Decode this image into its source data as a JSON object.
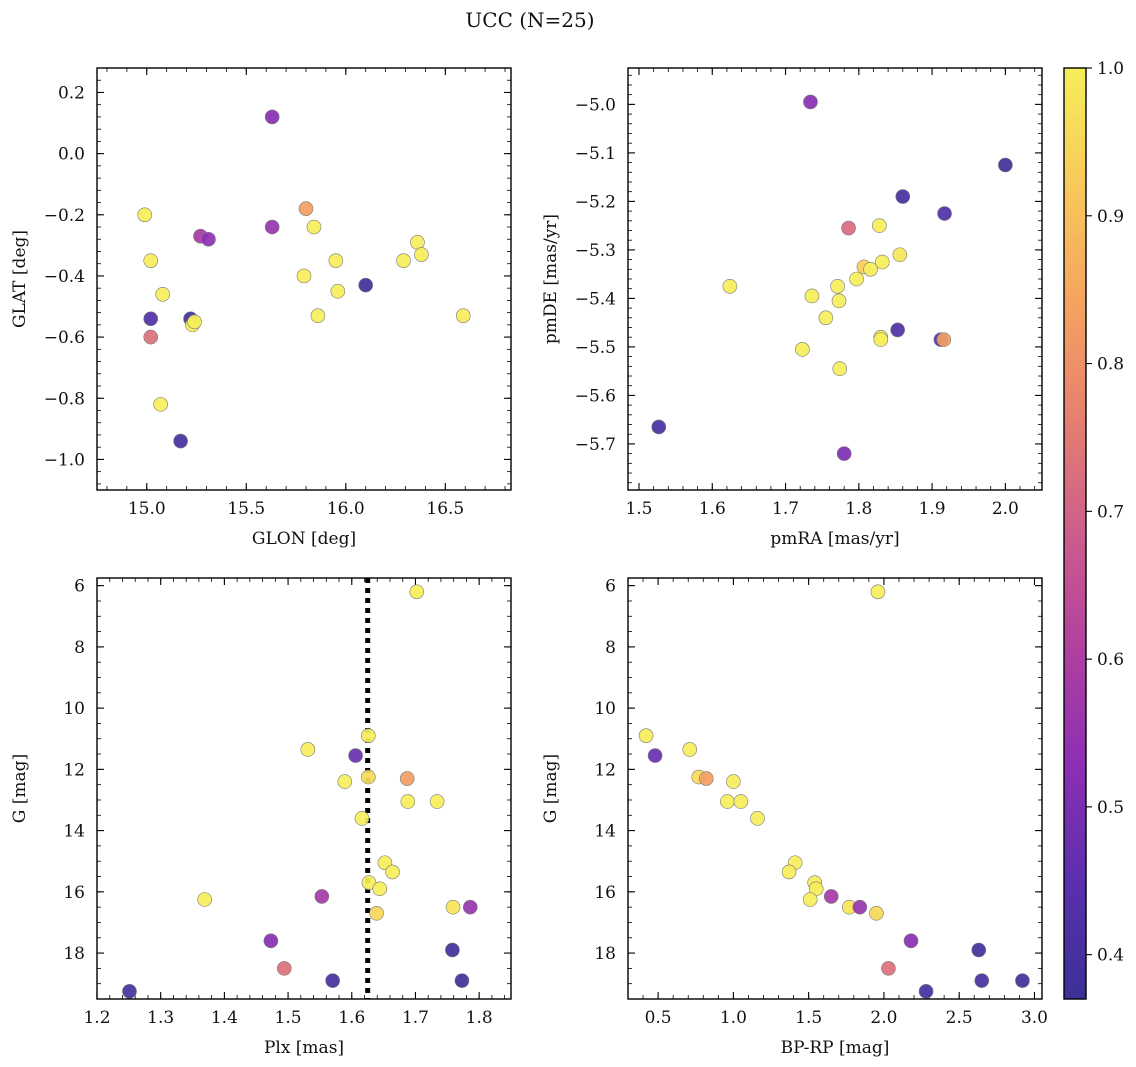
{
  "figure": {
    "title": "UCC (N=25)"
  },
  "colormap": {
    "name": "plasma-like",
    "range": [
      0.37,
      1.0
    ],
    "stops": [
      "#3b3196",
      "#5a2fae",
      "#8c2fb4",
      "#b0409f",
      "#cd5d8c",
      "#e6806f",
      "#f5a45f",
      "#f8c95a",
      "#f6ee5a"
    ],
    "ticks": [
      0.4,
      0.5,
      0.6,
      0.7,
      0.8,
      0.9,
      1.0
    ],
    "tick_labels": [
      "0.4",
      "0.5",
      "0.6",
      "0.7",
      "0.8",
      "0.9",
      "1.0"
    ]
  },
  "chart_data": [
    {
      "type": "scatter",
      "id": "glon-glat",
      "xlabel": "GLON [deg]",
      "ylabel": "GLAT [deg]",
      "xlim": [
        14.75,
        16.83
      ],
      "ylim": [
        -1.1,
        0.28
      ],
      "y_inverted": false,
      "xticks": [
        15.0,
        15.5,
        16.0,
        16.5
      ],
      "xtick_labels": [
        "15.0",
        "15.5",
        "16.0",
        "16.5"
      ],
      "yticks": [
        0.2,
        0.0,
        -0.2,
        -0.4,
        -0.6,
        -0.8,
        -1.0
      ],
      "ytick_labels": [
        "0.2",
        "0.0",
        "−0.2",
        "−0.4",
        "−0.6",
        "−0.8",
        "−1.0"
      ],
      "points": [
        {
          "x": 15.63,
          "y": 0.12,
          "c": 0.52
        },
        {
          "x": 14.99,
          "y": -0.2,
          "c": 1.0
        },
        {
          "x": 15.02,
          "y": -0.35,
          "c": 1.0
        },
        {
          "x": 15.08,
          "y": -0.46,
          "c": 1.0
        },
        {
          "x": 15.02,
          "y": -0.54,
          "c": 0.42
        },
        {
          "x": 15.02,
          "y": -0.6,
          "c": 0.73
        },
        {
          "x": 15.07,
          "y": -0.82,
          "c": 1.0
        },
        {
          "x": 15.17,
          "y": -0.94,
          "c": 0.4
        },
        {
          "x": 15.22,
          "y": -0.54,
          "c": 0.38
        },
        {
          "x": 15.23,
          "y": -0.56,
          "c": 1.0
        },
        {
          "x": 15.24,
          "y": -0.55,
          "c": 1.0
        },
        {
          "x": 15.27,
          "y": -0.27,
          "c": 0.58
        },
        {
          "x": 15.31,
          "y": -0.28,
          "c": 0.53
        },
        {
          "x": 15.63,
          "y": -0.24,
          "c": 0.55
        },
        {
          "x": 15.8,
          "y": -0.18,
          "c": 0.83
        },
        {
          "x": 15.84,
          "y": -0.24,
          "c": 1.0
        },
        {
          "x": 15.79,
          "y": -0.4,
          "c": 1.0
        },
        {
          "x": 15.86,
          "y": -0.53,
          "c": 1.0
        },
        {
          "x": 15.95,
          "y": -0.35,
          "c": 1.0
        },
        {
          "x": 15.96,
          "y": -0.45,
          "c": 1.0
        },
        {
          "x": 16.1,
          "y": -0.43,
          "c": 0.38
        },
        {
          "x": 16.29,
          "y": -0.35,
          "c": 1.0
        },
        {
          "x": 16.36,
          "y": -0.29,
          "c": 1.0
        },
        {
          "x": 16.38,
          "y": -0.33,
          "c": 1.0
        },
        {
          "x": 16.59,
          "y": -0.53,
          "c": 1.0
        }
      ]
    },
    {
      "type": "scatter",
      "id": "pmra-pmde",
      "xlabel": "pmRA [mas/yr]",
      "ylabel": "pmDE [mas/yr]",
      "xlim": [
        1.485,
        2.05
      ],
      "ylim": [
        -5.795,
        -4.925
      ],
      "y_inverted": false,
      "xticks": [
        1.5,
        1.6,
        1.7,
        1.8,
        1.9,
        2.0
      ],
      "xtick_labels": [
        "1.5",
        "1.6",
        "1.7",
        "1.8",
        "1.9",
        "2.0"
      ],
      "yticks": [
        -5.0,
        -5.1,
        -5.2,
        -5.3,
        -5.4,
        -5.5,
        -5.6,
        -5.7
      ],
      "ytick_labels": [
        "−5.0",
        "−5.1",
        "−5.2",
        "−5.3",
        "−5.4",
        "−5.5",
        "−5.6",
        "−5.7"
      ],
      "points": [
        {
          "x": 1.734,
          "y": -4.995,
          "c": 0.52
        },
        {
          "x": 2.0,
          "y": -5.125,
          "c": 0.38
        },
        {
          "x": 1.86,
          "y": -5.19,
          "c": 0.4
        },
        {
          "x": 1.917,
          "y": -5.225,
          "c": 0.42
        },
        {
          "x": 1.828,
          "y": -5.25,
          "c": 1.0
        },
        {
          "x": 1.786,
          "y": -5.255,
          "c": 0.72
        },
        {
          "x": 1.856,
          "y": -5.31,
          "c": 0.98
        },
        {
          "x": 1.832,
          "y": -5.325,
          "c": 1.0
        },
        {
          "x": 1.807,
          "y": -5.335,
          "c": 0.93
        },
        {
          "x": 1.816,
          "y": -5.34,
          "c": 1.0
        },
        {
          "x": 1.797,
          "y": -5.36,
          "c": 1.0
        },
        {
          "x": 1.624,
          "y": -5.375,
          "c": 1.0
        },
        {
          "x": 1.771,
          "y": -5.375,
          "c": 1.0
        },
        {
          "x": 1.736,
          "y": -5.395,
          "c": 1.0
        },
        {
          "x": 1.773,
          "y": -5.405,
          "c": 1.0
        },
        {
          "x": 1.755,
          "y": -5.44,
          "c": 1.0
        },
        {
          "x": 1.853,
          "y": -5.465,
          "c": 0.42
        },
        {
          "x": 1.83,
          "y": -5.48,
          "c": 1.0
        },
        {
          "x": 1.83,
          "y": -5.485,
          "c": 1.0
        },
        {
          "x": 1.912,
          "y": -5.485,
          "c": 0.45
        },
        {
          "x": 1.916,
          "y": -5.485,
          "c": 0.83
        },
        {
          "x": 1.723,
          "y": -5.505,
          "c": 1.0
        },
        {
          "x": 1.774,
          "y": -5.545,
          "c": 1.0
        },
        {
          "x": 1.527,
          "y": -5.665,
          "c": 0.4
        },
        {
          "x": 1.78,
          "y": -5.72,
          "c": 0.5
        }
      ]
    },
    {
      "type": "scatter",
      "id": "plx-g",
      "xlabel": "Plx [mas]",
      "ylabel": "G [mag]",
      "xlim": [
        1.2,
        1.85
      ],
      "ylim": [
        5.75,
        19.5
      ],
      "y_inverted": true,
      "xticks": [
        1.2,
        1.3,
        1.4,
        1.5,
        1.6,
        1.7,
        1.8
      ],
      "xtick_labels": [
        "1.2",
        "1.3",
        "1.4",
        "1.5",
        "1.6",
        "1.7",
        "1.8"
      ],
      "yticks": [
        6,
        8,
        10,
        12,
        14,
        16,
        18
      ],
      "ytick_labels": [
        "6",
        "8",
        "10",
        "12",
        "14",
        "16",
        "18"
      ],
      "vline": {
        "x": 1.625,
        "style": "dotted",
        "color": "#000000"
      },
      "points": [
        {
          "x": 1.702,
          "y": 6.2,
          "c": 1.0
        },
        {
          "x": 1.626,
          "y": 10.9,
          "c": 1.0
        },
        {
          "x": 1.531,
          "y": 11.35,
          "c": 1.0
        },
        {
          "x": 1.606,
          "y": 11.55,
          "c": 0.47
        },
        {
          "x": 1.626,
          "y": 12.25,
          "c": 0.96
        },
        {
          "x": 1.687,
          "y": 12.3,
          "c": 0.83
        },
        {
          "x": 1.589,
          "y": 12.4,
          "c": 1.0
        },
        {
          "x": 1.688,
          "y": 13.05,
          "c": 1.0
        },
        {
          "x": 1.734,
          "y": 13.05,
          "c": 1.0
        },
        {
          "x": 1.616,
          "y": 13.6,
          "c": 1.0
        },
        {
          "x": 1.652,
          "y": 15.05,
          "c": 1.0
        },
        {
          "x": 1.664,
          "y": 15.35,
          "c": 1.0
        },
        {
          "x": 1.627,
          "y": 15.7,
          "c": 1.0
        },
        {
          "x": 1.644,
          "y": 15.9,
          "c": 1.0
        },
        {
          "x": 1.553,
          "y": 16.15,
          "c": 0.58
        },
        {
          "x": 1.369,
          "y": 16.25,
          "c": 1.0
        },
        {
          "x": 1.759,
          "y": 16.5,
          "c": 0.98
        },
        {
          "x": 1.786,
          "y": 16.5,
          "c": 0.55
        },
        {
          "x": 1.639,
          "y": 16.7,
          "c": 0.95
        },
        {
          "x": 1.473,
          "y": 17.6,
          "c": 0.52
        },
        {
          "x": 1.758,
          "y": 17.9,
          "c": 0.38
        },
        {
          "x": 1.494,
          "y": 18.5,
          "c": 0.73
        },
        {
          "x": 1.57,
          "y": 18.9,
          "c": 0.4
        },
        {
          "x": 1.773,
          "y": 18.9,
          "c": 0.38
        },
        {
          "x": 1.251,
          "y": 19.25,
          "c": 0.4
        }
      ]
    },
    {
      "type": "scatter",
      "id": "bprp-g",
      "xlabel": "BP-RP [mag]",
      "ylabel": "G [mag]",
      "xlim": [
        0.3,
        3.05
      ],
      "ylim": [
        5.75,
        19.5
      ],
      "y_inverted": true,
      "xticks": [
        0.5,
        1.0,
        1.5,
        2.0,
        2.5,
        3.0
      ],
      "xtick_labels": [
        "0.5",
        "1.0",
        "1.5",
        "2.0",
        "2.5",
        "3.0"
      ],
      "yticks": [
        6,
        8,
        10,
        12,
        14,
        16,
        18
      ],
      "ytick_labels": [
        "6",
        "8",
        "10",
        "12",
        "14",
        "16",
        "18"
      ],
      "points": [
        {
          "x": 1.96,
          "y": 6.2,
          "c": 1.0
        },
        {
          "x": 0.42,
          "y": 10.9,
          "c": 1.0
        },
        {
          "x": 0.71,
          "y": 11.35,
          "c": 1.0
        },
        {
          "x": 0.48,
          "y": 11.55,
          "c": 0.47
        },
        {
          "x": 0.77,
          "y": 12.25,
          "c": 0.96
        },
        {
          "x": 0.82,
          "y": 12.3,
          "c": 0.83
        },
        {
          "x": 1.0,
          "y": 12.4,
          "c": 1.0
        },
        {
          "x": 0.96,
          "y": 13.05,
          "c": 1.0
        },
        {
          "x": 1.05,
          "y": 13.05,
          "c": 1.0
        },
        {
          "x": 1.16,
          "y": 13.6,
          "c": 1.0
        },
        {
          "x": 1.41,
          "y": 15.05,
          "c": 1.0
        },
        {
          "x": 1.37,
          "y": 15.35,
          "c": 1.0
        },
        {
          "x": 1.54,
          "y": 15.7,
          "c": 1.0
        },
        {
          "x": 1.55,
          "y": 15.9,
          "c": 1.0
        },
        {
          "x": 1.65,
          "y": 16.15,
          "c": 0.58
        },
        {
          "x": 1.51,
          "y": 16.25,
          "c": 1.0
        },
        {
          "x": 1.77,
          "y": 16.5,
          "c": 0.98
        },
        {
          "x": 1.84,
          "y": 16.5,
          "c": 0.55
        },
        {
          "x": 1.95,
          "y": 16.7,
          "c": 0.95
        },
        {
          "x": 2.18,
          "y": 17.6,
          "c": 0.52
        },
        {
          "x": 2.63,
          "y": 17.9,
          "c": 0.38
        },
        {
          "x": 2.03,
          "y": 18.5,
          "c": 0.73
        },
        {
          "x": 2.65,
          "y": 18.9,
          "c": 0.4
        },
        {
          "x": 2.92,
          "y": 18.9,
          "c": 0.38
        },
        {
          "x": 2.28,
          "y": 19.25,
          "c": 0.4
        }
      ]
    }
  ]
}
